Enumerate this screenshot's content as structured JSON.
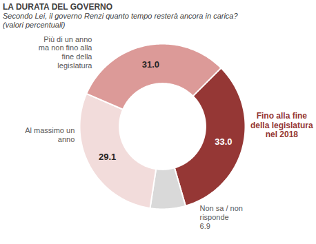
{
  "chart_data": {
    "type": "donut",
    "title": "LA DURATA DEL GOVERNO",
    "subtitle": "Secondo Lei, il governo Renzi quanto tempo resterà ancora in carica? (valori percentuali)",
    "categories": [
      "Fino alla fine della legislatura nel 2018",
      "Non sa / non risponde",
      "Al massimo un anno",
      "Più di un anno ma non fino alla fine della legislatura"
    ],
    "values": [
      33.0,
      6.9,
      29.1,
      31.0
    ],
    "value_labels": [
      "33.0",
      "6.9",
      "29.1",
      "31.0"
    ],
    "colors": [
      "#953735",
      "#d9d9d9",
      "#f2dcdb",
      "#dc9a98"
    ],
    "data_labels": true
  }
}
